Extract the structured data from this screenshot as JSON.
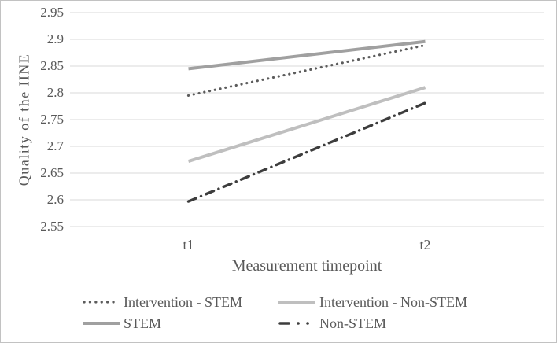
{
  "chart_data": {
    "type": "line",
    "title": "",
    "xlabel": "Measurement timepoint",
    "ylabel": "Quality of the HNE",
    "categories": [
      "t1",
      "t2"
    ],
    "ylim": [
      2.55,
      2.95
    ],
    "ytick_step": 0.05,
    "yticks": [
      2.95,
      2.9,
      2.85,
      2.8,
      2.75,
      2.7,
      2.65,
      2.6,
      2.55
    ],
    "ytick_labels": [
      "2.95",
      "2.9",
      "2.85",
      "2.8",
      "2.75",
      "2.7",
      "2.65",
      "2.6",
      "2.55"
    ],
    "grid": "horizontal",
    "gridline_color": "#d9d9d9",
    "text_color": "#595959",
    "background_color": "#ffffff",
    "frame_border_color": "#c2c2c2",
    "legend_position": "bottom",
    "legend_columns": 2,
    "series": [
      {
        "name": "Intervention - STEM",
        "values": [
          2.795,
          2.889
        ],
        "color": "#5c5c5c",
        "style": "dotted"
      },
      {
        "name": "Intervention - Non-STEM",
        "values": [
          2.672,
          2.81
        ],
        "color": "#bfbfbf",
        "style": "solid"
      },
      {
        "name": "STEM",
        "values": [
          2.845,
          2.896
        ],
        "color": "#a0a0a0",
        "style": "solid"
      },
      {
        "name": "Non-STEM",
        "values": [
          2.597,
          2.781
        ],
        "color": "#3d3d3d",
        "style": "dash-dot"
      }
    ]
  }
}
